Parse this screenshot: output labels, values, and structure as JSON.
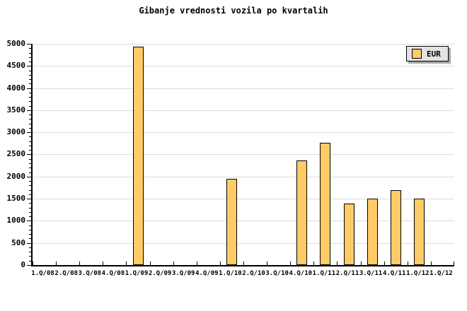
{
  "chart_data": {
    "type": "bar",
    "title": "Gibanje vrednosti vozila po kvartalih",
    "categories": [
      "1.Q/08",
      "2.Q/08",
      "3.Q/08",
      "4.Q/08",
      "1.Q/09",
      "2.Q/09",
      "3.Q/09",
      "4.Q/09",
      "1.Q/10",
      "2.Q/10",
      "3.Q/10",
      "4.Q/10",
      "1.Q/11",
      "2.Q/11",
      "3.Q/11",
      "4.Q/11",
      "1.Q/12",
      "1.Q/12"
    ],
    "values": [
      0,
      0,
      0,
      0,
      4940,
      0,
      0,
      0,
      1950,
      0,
      0,
      2360,
      2760,
      1390,
      1500,
      1700,
      1500,
      0
    ],
    "xlabel": "",
    "ylabel": "",
    "ylim": [
      0,
      5000
    ],
    "ytick_step": 500,
    "y_minor_tick_step": 100,
    "grid": true,
    "legend": [
      "EUR"
    ],
    "legend_position": "top-right",
    "colors": {
      "bar_fill": "#FFCB66",
      "bar_border": "#000000",
      "grid": "#DCDCDC",
      "axis": "#000000",
      "legend_bg": "#E2E2E2",
      "legend_shadow": "#A6A6A6",
      "background": "#FFFFFF",
      "text": "#000000"
    }
  }
}
